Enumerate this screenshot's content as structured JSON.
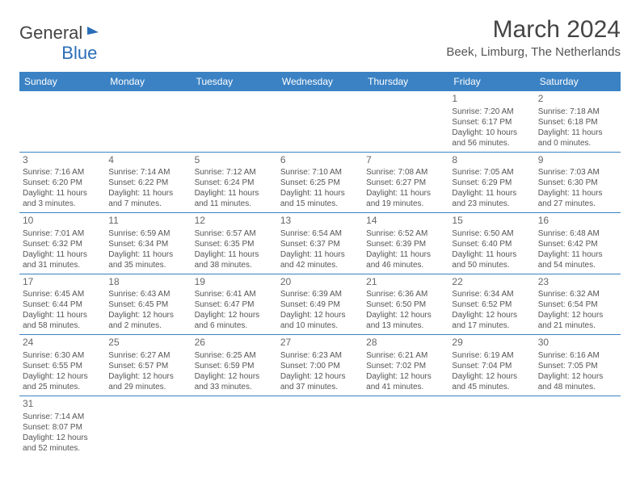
{
  "logo": {
    "part1": "General",
    "part2": "Blue"
  },
  "title": "March 2024",
  "location": "Beek, Limburg, The Netherlands",
  "dayHeaders": [
    "Sunday",
    "Monday",
    "Tuesday",
    "Wednesday",
    "Thursday",
    "Friday",
    "Saturday"
  ],
  "colors": {
    "headerBg": "#3b82c4",
    "headerText": "#ffffff",
    "brandBlue": "#2a6db8",
    "textGray": "#555555",
    "borderBlue": "#3b82c4"
  },
  "typography": {
    "title_fontsize": 30,
    "location_fontsize": 15,
    "dayhead_fontsize": 12,
    "daynum_fontsize": 12,
    "body_fontsize": 10
  },
  "days": [
    {
      "n": "1",
      "sunrise": "Sunrise: 7:20 AM",
      "sunset": "Sunset: 6:17 PM",
      "daylight": "Daylight: 10 hours and 56 minutes."
    },
    {
      "n": "2",
      "sunrise": "Sunrise: 7:18 AM",
      "sunset": "Sunset: 6:18 PM",
      "daylight": "Daylight: 11 hours and 0 minutes."
    },
    {
      "n": "3",
      "sunrise": "Sunrise: 7:16 AM",
      "sunset": "Sunset: 6:20 PM",
      "daylight": "Daylight: 11 hours and 3 minutes."
    },
    {
      "n": "4",
      "sunrise": "Sunrise: 7:14 AM",
      "sunset": "Sunset: 6:22 PM",
      "daylight": "Daylight: 11 hours and 7 minutes."
    },
    {
      "n": "5",
      "sunrise": "Sunrise: 7:12 AM",
      "sunset": "Sunset: 6:24 PM",
      "daylight": "Daylight: 11 hours and 11 minutes."
    },
    {
      "n": "6",
      "sunrise": "Sunrise: 7:10 AM",
      "sunset": "Sunset: 6:25 PM",
      "daylight": "Daylight: 11 hours and 15 minutes."
    },
    {
      "n": "7",
      "sunrise": "Sunrise: 7:08 AM",
      "sunset": "Sunset: 6:27 PM",
      "daylight": "Daylight: 11 hours and 19 minutes."
    },
    {
      "n": "8",
      "sunrise": "Sunrise: 7:05 AM",
      "sunset": "Sunset: 6:29 PM",
      "daylight": "Daylight: 11 hours and 23 minutes."
    },
    {
      "n": "9",
      "sunrise": "Sunrise: 7:03 AM",
      "sunset": "Sunset: 6:30 PM",
      "daylight": "Daylight: 11 hours and 27 minutes."
    },
    {
      "n": "10",
      "sunrise": "Sunrise: 7:01 AM",
      "sunset": "Sunset: 6:32 PM",
      "daylight": "Daylight: 11 hours and 31 minutes."
    },
    {
      "n": "11",
      "sunrise": "Sunrise: 6:59 AM",
      "sunset": "Sunset: 6:34 PM",
      "daylight": "Daylight: 11 hours and 35 minutes."
    },
    {
      "n": "12",
      "sunrise": "Sunrise: 6:57 AM",
      "sunset": "Sunset: 6:35 PM",
      "daylight": "Daylight: 11 hours and 38 minutes."
    },
    {
      "n": "13",
      "sunrise": "Sunrise: 6:54 AM",
      "sunset": "Sunset: 6:37 PM",
      "daylight": "Daylight: 11 hours and 42 minutes."
    },
    {
      "n": "14",
      "sunrise": "Sunrise: 6:52 AM",
      "sunset": "Sunset: 6:39 PM",
      "daylight": "Daylight: 11 hours and 46 minutes."
    },
    {
      "n": "15",
      "sunrise": "Sunrise: 6:50 AM",
      "sunset": "Sunset: 6:40 PM",
      "daylight": "Daylight: 11 hours and 50 minutes."
    },
    {
      "n": "16",
      "sunrise": "Sunrise: 6:48 AM",
      "sunset": "Sunset: 6:42 PM",
      "daylight": "Daylight: 11 hours and 54 minutes."
    },
    {
      "n": "17",
      "sunrise": "Sunrise: 6:45 AM",
      "sunset": "Sunset: 6:44 PM",
      "daylight": "Daylight: 11 hours and 58 minutes."
    },
    {
      "n": "18",
      "sunrise": "Sunrise: 6:43 AM",
      "sunset": "Sunset: 6:45 PM",
      "daylight": "Daylight: 12 hours and 2 minutes."
    },
    {
      "n": "19",
      "sunrise": "Sunrise: 6:41 AM",
      "sunset": "Sunset: 6:47 PM",
      "daylight": "Daylight: 12 hours and 6 minutes."
    },
    {
      "n": "20",
      "sunrise": "Sunrise: 6:39 AM",
      "sunset": "Sunset: 6:49 PM",
      "daylight": "Daylight: 12 hours and 10 minutes."
    },
    {
      "n": "21",
      "sunrise": "Sunrise: 6:36 AM",
      "sunset": "Sunset: 6:50 PM",
      "daylight": "Daylight: 12 hours and 13 minutes."
    },
    {
      "n": "22",
      "sunrise": "Sunrise: 6:34 AM",
      "sunset": "Sunset: 6:52 PM",
      "daylight": "Daylight: 12 hours and 17 minutes."
    },
    {
      "n": "23",
      "sunrise": "Sunrise: 6:32 AM",
      "sunset": "Sunset: 6:54 PM",
      "daylight": "Daylight: 12 hours and 21 minutes."
    },
    {
      "n": "24",
      "sunrise": "Sunrise: 6:30 AM",
      "sunset": "Sunset: 6:55 PM",
      "daylight": "Daylight: 12 hours and 25 minutes."
    },
    {
      "n": "25",
      "sunrise": "Sunrise: 6:27 AM",
      "sunset": "Sunset: 6:57 PM",
      "daylight": "Daylight: 12 hours and 29 minutes."
    },
    {
      "n": "26",
      "sunrise": "Sunrise: 6:25 AM",
      "sunset": "Sunset: 6:59 PM",
      "daylight": "Daylight: 12 hours and 33 minutes."
    },
    {
      "n": "27",
      "sunrise": "Sunrise: 6:23 AM",
      "sunset": "Sunset: 7:00 PM",
      "daylight": "Daylight: 12 hours and 37 minutes."
    },
    {
      "n": "28",
      "sunrise": "Sunrise: 6:21 AM",
      "sunset": "Sunset: 7:02 PM",
      "daylight": "Daylight: 12 hours and 41 minutes."
    },
    {
      "n": "29",
      "sunrise": "Sunrise: 6:19 AM",
      "sunset": "Sunset: 7:04 PM",
      "daylight": "Daylight: 12 hours and 45 minutes."
    },
    {
      "n": "30",
      "sunrise": "Sunrise: 6:16 AM",
      "sunset": "Sunset: 7:05 PM",
      "daylight": "Daylight: 12 hours and 48 minutes."
    },
    {
      "n": "31",
      "sunrise": "Sunrise: 7:14 AM",
      "sunset": "Sunset: 8:07 PM",
      "daylight": "Daylight: 12 hours and 52 minutes."
    }
  ],
  "layout": {
    "startOffset": 5,
    "totalCells": 42,
    "columns": 7
  }
}
